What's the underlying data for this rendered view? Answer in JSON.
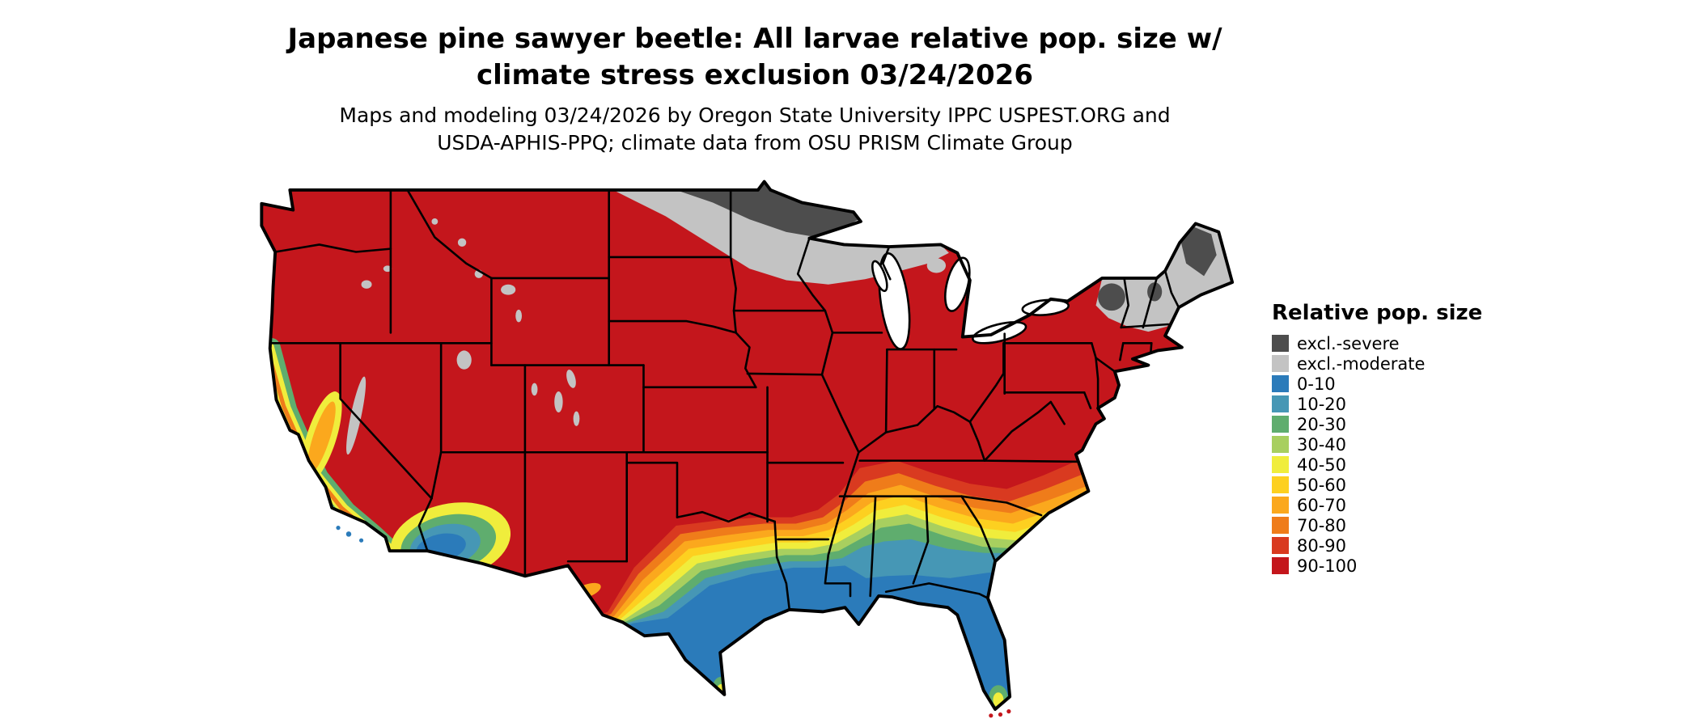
{
  "title": {
    "line1": "Japanese pine sawyer beetle: All larvae relative pop. size w/",
    "line2": "climate stress exclusion 03/24/2026"
  },
  "subtitle": {
    "line1": "Maps and modeling 03/24/2026 by Oregon State University IPPC USPEST.ORG and",
    "line2": "USDA-APHIS-PPQ; climate data from OSU PRISM Climate Group"
  },
  "legend": {
    "title": "Relative pop. size",
    "items": [
      {
        "label": "excl.-severe",
        "color": "#4d4d4d"
      },
      {
        "label": "excl.-moderate",
        "color": "#c3c3c3"
      },
      {
        "label": "0-10",
        "color": "#2b7bba"
      },
      {
        "label": "10-20",
        "color": "#4697b5"
      },
      {
        "label": "20-30",
        "color": "#5fad6e"
      },
      {
        "label": "30-40",
        "color": "#a8cf5f"
      },
      {
        "label": "40-50",
        "color": "#f0ed3c"
      },
      {
        "label": "50-60",
        "color": "#fdd020"
      },
      {
        "label": "60-70",
        "color": "#fba81d"
      },
      {
        "label": "70-80",
        "color": "#ef7c1a"
      },
      {
        "label": "80-90",
        "color": "#d93a20"
      },
      {
        "label": "90-100",
        "color": "#c4161c"
      }
    ]
  },
  "map": {
    "outline_color": "#000000",
    "water_color": "#ffffff"
  }
}
